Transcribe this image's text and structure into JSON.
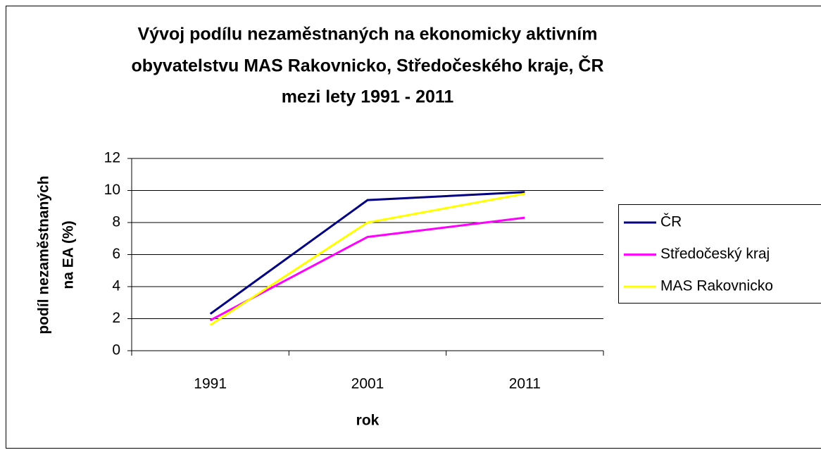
{
  "chart_data": {
    "type": "line",
    "title": [
      "Vývoj podílu nezaměstnaných na ekonomicky aktivním",
      "obyvatelstvu MAS Rakovnicko, Středočeského kraje, ČR",
      "mezi lety 1991 - 2011"
    ],
    "x_label": "rok",
    "y_label": [
      "podíl nezaměstnaných",
      "na EA (%)"
    ],
    "categories": [
      "1991",
      "2001",
      "2011"
    ],
    "series": [
      {
        "name": "ČR",
        "color": "#000080",
        "values": [
          2.3,
          9.4,
          9.9
        ]
      },
      {
        "name": "Středočeský kraj",
        "color": "#ff00ff",
        "values": [
          1.9,
          7.1,
          8.3
        ]
      },
      {
        "name": "MAS Rakovnicko",
        "color": "#ffff00",
        "values": [
          1.6,
          8.0,
          9.8
        ]
      }
    ],
    "ylim": [
      0,
      12
    ],
    "yticks": [
      0,
      2,
      4,
      6,
      8,
      10,
      12
    ],
    "grid": true,
    "legend": "right"
  }
}
